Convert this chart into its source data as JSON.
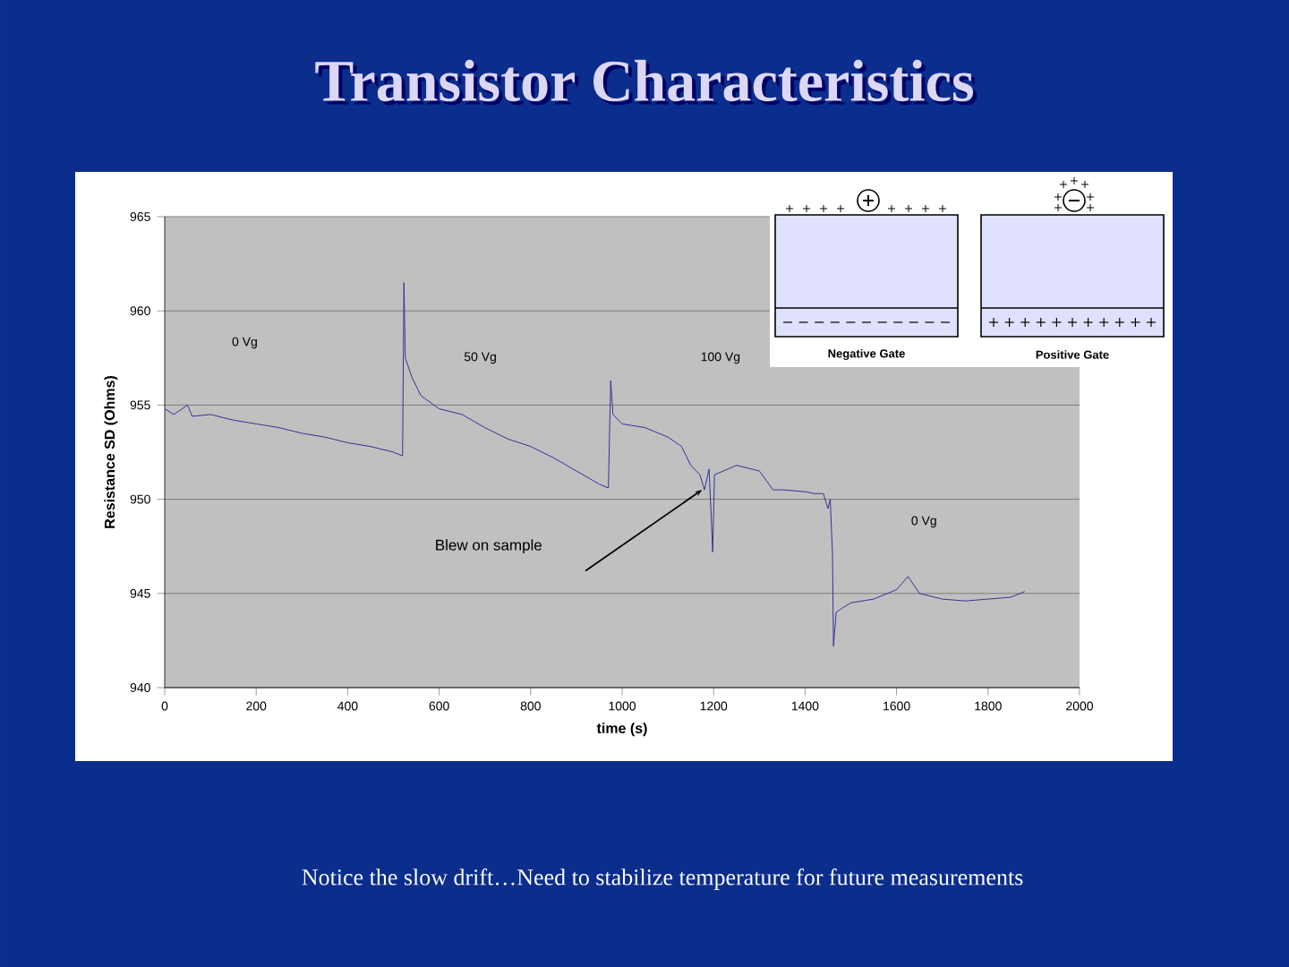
{
  "chart_data": {
    "type": "line",
    "title": "Transistor Characteristics",
    "xlabel": "time (s)",
    "ylabel": "Resistance SD (Ohms)",
    "x": [
      0,
      20,
      50,
      60,
      100,
      150,
      200,
      250,
      300,
      350,
      400,
      450,
      500,
      520,
      523,
      526,
      540,
      560,
      600,
      650,
      700,
      750,
      800,
      850,
      900,
      950,
      970,
      975,
      980,
      1000,
      1050,
      1100,
      1130,
      1150,
      1170,
      1180,
      1190,
      1195,
      1198,
      1202,
      1250,
      1300,
      1330,
      1350,
      1400,
      1420,
      1440,
      1450,
      1455,
      1460,
      1462,
      1468,
      1480,
      1500,
      1550,
      1600,
      1625,
      1650,
      1700,
      1750,
      1800,
      1850,
      1880
    ],
    "series": [
      {
        "color": "#333399",
        "values": [
          954.8,
          954.5,
          955.0,
          954.4,
          954.5,
          954.2,
          954.0,
          953.8,
          953.5,
          953.3,
          953.0,
          952.8,
          952.5,
          952.3,
          961.5,
          957.5,
          956.5,
          955.5,
          954.8,
          954.5,
          953.8,
          953.2,
          952.8,
          952.2,
          951.5,
          950.8,
          950.6,
          956.3,
          954.5,
          954.0,
          953.8,
          953.3,
          952.8,
          951.8,
          951.3,
          950.5,
          951.6,
          949.0,
          947.2,
          951.3,
          951.8,
          951.5,
          950.5,
          950.5,
          950.4,
          950.3,
          950.3,
          949.5,
          950.0,
          947.0,
          942.2,
          944.0,
          944.2,
          944.5,
          944.7,
          945.2,
          945.9,
          945.0,
          944.7,
          944.6,
          944.7,
          944.8,
          945.1
        ]
      }
    ],
    "xlim": [
      0,
      2000
    ],
    "ylim": [
      940,
      965
    ],
    "xticks": [
      0,
      200,
      400,
      600,
      800,
      1000,
      1200,
      1400,
      1600,
      1800,
      2000
    ],
    "yticks": [
      940,
      945,
      950,
      955,
      960,
      965
    ],
    "grid": "y",
    "annotations": [
      "0 Vg",
      "50 Vg",
      "100 Vg",
      "0 Vg",
      "Blew on sample",
      "Negative Gate",
      "Positive Gate",
      "Notice the slow drift…Need to stabilize temperature for future measurements"
    ]
  }
}
